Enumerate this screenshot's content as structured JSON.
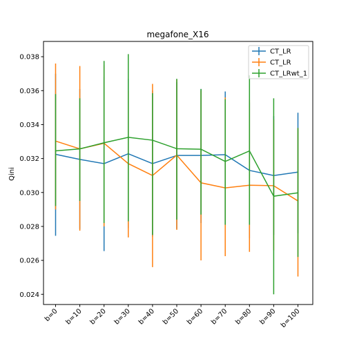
{
  "chart_data": {
    "type": "line",
    "title": "megafone_X16",
    "xlabel": "",
    "ylabel": "Qini",
    "categories": [
      "b=0",
      "b=10",
      "b=20",
      "b=30",
      "b=40",
      "b=50",
      "b=60",
      "b=70",
      "b=80",
      "b=90",
      "b=100"
    ],
    "ylim": [
      0.0234,
      0.0389
    ],
    "yticks": [
      "0.024",
      "0.026",
      "0.028",
      "0.030",
      "0.032",
      "0.034",
      "0.036",
      "0.038"
    ],
    "grid": false,
    "legend_position": "top-right",
    "error_bars": true,
    "series": [
      {
        "name": "CT_LR",
        "color": "#1f77b4",
        "values": [
          0.03225,
          0.03195,
          0.0317,
          0.03228,
          0.0317,
          0.03218,
          0.03218,
          0.03223,
          0.0313,
          0.031,
          0.0312
        ],
        "lower": [
          0.02745,
          0.02785,
          0.02655,
          0.0279,
          0.0274,
          0.02785,
          0.0282,
          0.0281,
          0.0273,
          0.0275,
          0.0276
        ],
        "upper": [
          0.037,
          0.0361,
          0.0368,
          0.0367,
          0.036,
          0.0365,
          0.0361,
          0.03595,
          0.0353,
          0.0345,
          0.0347
        ]
      },
      {
        "name": "CT_LR",
        "color": "#ff7f0e",
        "values": [
          0.03303,
          0.03257,
          0.0329,
          0.0317,
          0.031,
          0.0322,
          0.03057,
          0.03027,
          0.03043,
          0.0304,
          0.0295
        ],
        "lower": [
          0.029,
          0.02775,
          0.028,
          0.02735,
          0.0256,
          0.0278,
          0.026,
          0.02625,
          0.0265,
          0.0266,
          0.02505
        ],
        "upper": [
          0.0376,
          0.03745,
          0.0375,
          0.036,
          0.0364,
          0.03665,
          0.036,
          0.0356,
          0.03545,
          0.0343,
          0.0338
        ]
      },
      {
        "name": "CT_LRwt_1",
        "color": "#2ca02c",
        "values": [
          0.03245,
          0.03257,
          0.03293,
          0.03325,
          0.03308,
          0.03258,
          0.03255,
          0.03183,
          0.03245,
          0.02978,
          0.02998
        ],
        "lower": [
          0.0292,
          0.0295,
          0.0282,
          0.0283,
          0.0275,
          0.0284,
          0.0287,
          0.0281,
          0.0281,
          0.024,
          0.0262
        ],
        "upper": [
          0.0358,
          0.03555,
          0.03775,
          0.03815,
          0.03585,
          0.0367,
          0.0361,
          0.0355,
          0.0369,
          0.03555,
          0.0338
        ]
      }
    ]
  }
}
